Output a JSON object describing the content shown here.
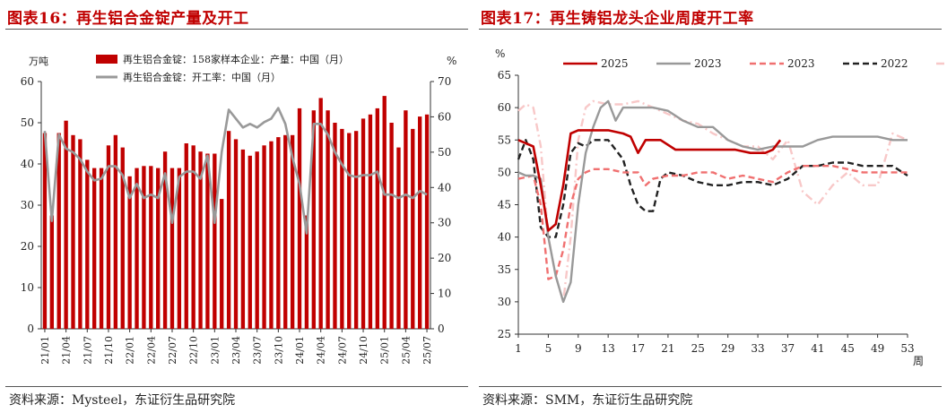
{
  "left": {
    "title": "图表16：再生铝合金锭产量及开工",
    "source": "资料来源：Mysteel，东证衍生品研究院",
    "left_unit": "万吨",
    "right_unit": "%",
    "legend": [
      {
        "label": "再生铝合金锭：158家样本企业：产量：中国（月）",
        "color": "#c00000",
        "kind": "bar"
      },
      {
        "label": "再生铝合金锭：开工率：中国（月）",
        "color": "#999999",
        "kind": "line"
      }
    ]
  },
  "right": {
    "title": "图表17：再生铸铝龙头企业周度开工率",
    "source": "资料来源：SMM，东证衍生品研究院",
    "y_unit": "%",
    "x_unit": "周",
    "legend": [
      {
        "label": "2025",
        "color": "#c00000",
        "dash": "solid"
      },
      {
        "label": "2023",
        "color": "#999999",
        "dash": "solid"
      },
      {
        "label": "2023",
        "color": "#f07070",
        "dash": "dash"
      },
      {
        "label": "2022",
        "color": "#222222",
        "dash": "dash"
      },
      {
        "label": "2021",
        "color": "#f8c8c8",
        "dash": "dashdot"
      }
    ]
  },
  "chart_data": [
    {
      "type": "bar",
      "title": "图表16：再生铝合金锭产量及开工",
      "categories": [
        "21/01",
        "21/02",
        "21/03",
        "21/04",
        "21/05",
        "21/06",
        "21/07",
        "21/08",
        "21/09",
        "21/10",
        "21/11",
        "21/12",
        "22/01",
        "22/02",
        "22/03",
        "22/04",
        "22/05",
        "22/06",
        "22/07",
        "22/08",
        "22/09",
        "22/10",
        "22/11",
        "22/12",
        "23/01",
        "23/02",
        "23/03",
        "23/04",
        "23/05",
        "23/06",
        "23/07",
        "23/08",
        "23/09",
        "23/10",
        "23/11",
        "23/12",
        "24/01",
        "24/02",
        "24/03",
        "24/04",
        "24/05",
        "24/06",
        "24/07",
        "24/08",
        "24/09",
        "24/10",
        "24/11",
        "24/12",
        "25/01",
        "25/02",
        "25/03",
        "25/04",
        "25/05",
        "25/06",
        "25/07"
      ],
      "tick_labels": [
        "21/01",
        "21/04",
        "21/07",
        "21/10",
        "22/01",
        "22/04",
        "22/07",
        "22/10",
        "23/01",
        "23/04",
        "23/07",
        "23/10",
        "24/01",
        "24/04",
        "24/07",
        "24/10",
        "25/01",
        "25/04",
        "25/07"
      ],
      "ylim_left": [
        0,
        60
      ],
      "yticks_left": [
        0,
        10,
        20,
        30,
        40,
        50,
        60
      ],
      "ylim_right": [
        0,
        70
      ],
      "yticks_right": [
        0,
        10,
        20,
        30,
        40,
        50,
        60,
        70
      ],
      "series": [
        {
          "name": "再生铝合金锭：158家样本企业：产量：中国（月）",
          "axis": "left",
          "type": "bar",
          "values": [
            47.5,
            27.5,
            47.5,
            50.5,
            47,
            46,
            41,
            39,
            39,
            44.5,
            47,
            44,
            37,
            39,
            39.5,
            39.5,
            39,
            43,
            39,
            39,
            45,
            44.5,
            43,
            42.5,
            42.5,
            31.5,
            48,
            46,
            43.5,
            42,
            43,
            44.5,
            45.5,
            46.5,
            47,
            47,
            53.5,
            27.5,
            53,
            56,
            53,
            50,
            48.5,
            47.5,
            48,
            51,
            52,
            53.5,
            56.5,
            50,
            44,
            53,
            48.5,
            51.5,
            52
          ]
        },
        {
          "name": "再生铝合金锭：开工率：中国（月）",
          "axis": "right",
          "type": "line",
          "values": [
            56,
            30.5,
            55,
            51,
            50,
            48,
            44.5,
            42,
            42.5,
            46,
            46,
            43.5,
            37,
            41,
            37,
            38,
            37,
            44,
            30,
            43,
            44.5,
            44.5,
            42.5,
            49,
            30,
            50,
            62,
            59.5,
            57,
            58,
            57,
            58.5,
            59.5,
            62.5,
            58,
            48.5,
            41,
            27,
            58,
            58,
            55,
            50,
            46.5,
            43.5,
            43,
            43.5,
            43.5,
            44.5,
            38,
            38,
            37,
            38,
            37,
            39,
            38
          ]
        }
      ]
    },
    {
      "type": "line",
      "title": "图表17：再生铸铝龙头企业周度开工率",
      "xlim": [
        1,
        53
      ],
      "xticks": [
        1,
        5,
        9,
        13,
        17,
        21,
        25,
        29,
        33,
        37,
        41,
        45,
        49,
        53
      ],
      "ylim": [
        25,
        65
      ],
      "yticks": [
        25,
        30,
        35,
        40,
        45,
        50,
        55,
        60,
        65
      ],
      "series": [
        {
          "name": "2025",
          "x": [
            1,
            3,
            4,
            5,
            6,
            7,
            8,
            9,
            11,
            13,
            15,
            16,
            17,
            18,
            19,
            20,
            22,
            24,
            26,
            28,
            30,
            32,
            34,
            35,
            36
          ],
          "y": [
            55,
            54,
            48,
            41,
            42,
            48,
            56,
            56.5,
            56.5,
            56.5,
            56,
            55.5,
            53,
            55,
            55,
            55,
            53.5,
            53.5,
            53.5,
            53.5,
            53.5,
            53,
            53,
            53.5,
            55
          ]
        },
        {
          "name": "2023",
          "x": [
            1,
            2,
            3,
            4,
            5,
            6,
            7,
            8,
            9,
            10,
            11,
            12,
            13,
            14,
            15,
            16,
            17,
            19,
            21,
            23,
            25,
            27,
            29,
            31,
            33,
            35,
            37,
            39,
            41,
            43,
            45,
            47,
            49,
            51,
            53
          ],
          "y": [
            50,
            49.5,
            49.5,
            49,
            40,
            34,
            30,
            33,
            45,
            53,
            57,
            60,
            61,
            58,
            60,
            60,
            60,
            60,
            59.5,
            58,
            57,
            57,
            55,
            54,
            53.5,
            54,
            54,
            54,
            55,
            55.5,
            55.5,
            55.5,
            55.5,
            55,
            55
          ]
        },
        {
          "name": "2023",
          "x": [
            1,
            3,
            4,
            5,
            6,
            7,
            8,
            9,
            10,
            11,
            13,
            15,
            17,
            18,
            19,
            21,
            23,
            25,
            27,
            29,
            31,
            33,
            35,
            37,
            39,
            41,
            43,
            45,
            47,
            49,
            51,
            53
          ],
          "y": [
            49,
            49.5,
            45,
            33.5,
            34,
            38,
            45,
            49,
            50,
            50.5,
            50.5,
            50,
            50,
            48,
            49,
            49.5,
            49.5,
            50,
            50,
            49,
            49.5,
            49,
            48.5,
            50,
            51,
            51,
            51,
            50.5,
            50,
            50,
            50,
            50
          ]
        },
        {
          "name": "2022",
          "x": [
            1,
            2,
            3,
            4,
            5,
            6,
            7,
            8,
            9,
            10,
            11,
            13,
            15,
            16,
            17,
            18,
            19,
            20,
            21,
            23,
            25,
            27,
            29,
            31,
            33,
            35,
            37,
            39,
            41,
            43,
            45,
            47,
            49,
            51,
            53
          ],
          "y": [
            52,
            55,
            52,
            41.5,
            40,
            40,
            45,
            53,
            54.5,
            54,
            55,
            55,
            52,
            48,
            45,
            44,
            44,
            49,
            50,
            49.5,
            48.5,
            48,
            48,
            48.5,
            48.5,
            48,
            49,
            51,
            51,
            51.5,
            51.5,
            51,
            51,
            51,
            49.5
          ]
        },
        {
          "name": "2021",
          "x": [
            1,
            2,
            3,
            4,
            5,
            6,
            7,
            8,
            9,
            10,
            11,
            13,
            15,
            17,
            19,
            21,
            23,
            25,
            27,
            29,
            31,
            33,
            35,
            37,
            39,
            41,
            43,
            45,
            47,
            49,
            51,
            53
          ],
          "y": [
            59.5,
            60.5,
            60,
            54,
            40,
            34,
            30,
            40,
            55,
            60,
            61,
            60.5,
            60.5,
            61,
            60,
            59,
            58,
            57.5,
            56,
            55,
            54,
            54,
            52,
            55,
            47,
            45,
            48,
            50,
            48,
            48,
            56,
            55
          ]
        }
      ]
    }
  ]
}
